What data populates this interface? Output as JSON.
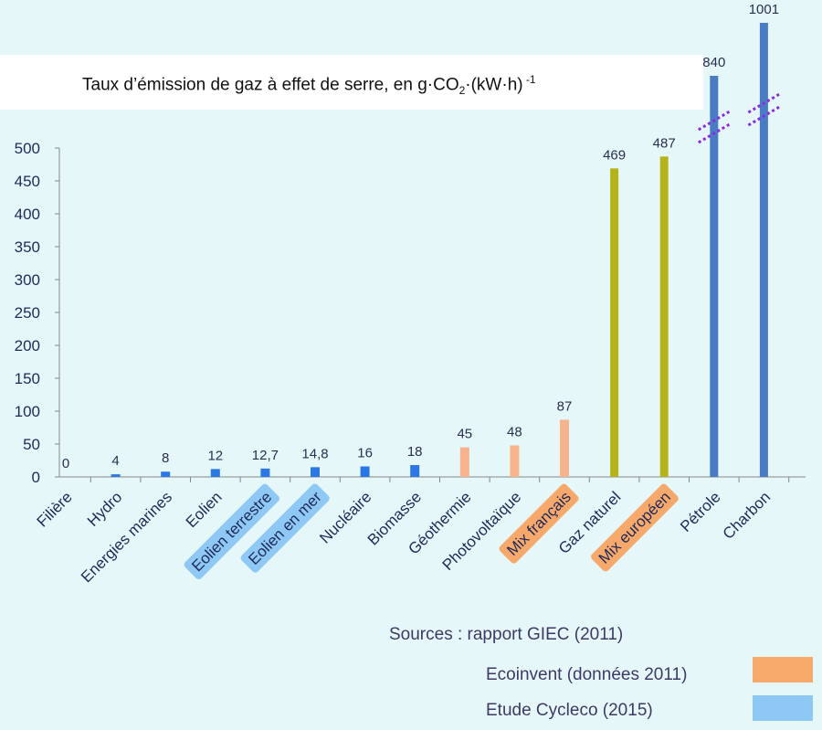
{
  "title": {
    "main": "Taux d’émission de gaz à effet de serre, en g·CO",
    "sub": "2",
    "unit": "·(kW·h)",
    "sup": " -1"
  },
  "chart_data": {
    "type": "bar",
    "categories": [
      "Filière",
      "Hydro",
      "Energies marines",
      "Eolien",
      "Eolien terrestre",
      "Eolien en mer",
      "Nucléaire",
      "Biomasse",
      "Géothermie",
      "Photovoltaïque",
      "Mix français",
      "Gaz naturel",
      "Mix européen",
      "Pétrole",
      "Charbon"
    ],
    "values": [
      0,
      4,
      8,
      12,
      12.7,
      14.8,
      16,
      18,
      45,
      48,
      87,
      469,
      487,
      840,
      1001
    ],
    "value_labels": [
      "0",
      "4",
      "8",
      "12",
      "12,7",
      "14,8",
      "16",
      "18",
      "45",
      "48",
      "87",
      "469",
      "487",
      "840",
      "1001"
    ],
    "bar_colors": [
      "#2b78e4",
      "#2b78e4",
      "#2b78e4",
      "#2b78e4",
      "#2b78e4",
      "#2b78e4",
      "#2b78e4",
      "#2b78e4",
      "#f6b38c",
      "#f6b38c",
      "#f6b38c",
      "#b5b21a",
      "#b5b21a",
      "#4a7cc4",
      "#4a7cc4"
    ],
    "label_highlights": [
      "none",
      "none",
      "none",
      "none",
      "blue",
      "blue",
      "none",
      "none",
      "none",
      "none",
      "orange",
      "none",
      "orange",
      "none",
      "none"
    ],
    "highlight_colors": {
      "blue": "#8ec9f5",
      "orange": "#f7a96b"
    },
    "broken_axis_bars": [
      "Pétrole",
      "Charbon"
    ],
    "y_ticks": [
      "0",
      "50",
      "100",
      "150",
      "200",
      "250",
      "300",
      "350",
      "400",
      "450",
      "500"
    ],
    "ylim": [
      0,
      500
    ],
    "grid": false
  },
  "legend": {
    "source": "Sources : rapport GIEC (2011)",
    "items": [
      {
        "label": "Ecoinvent  (données 2011)",
        "color": "#f7a96b"
      },
      {
        "label": "Etude Cycleco (2015)",
        "color": "#8ec9f5"
      }
    ]
  }
}
